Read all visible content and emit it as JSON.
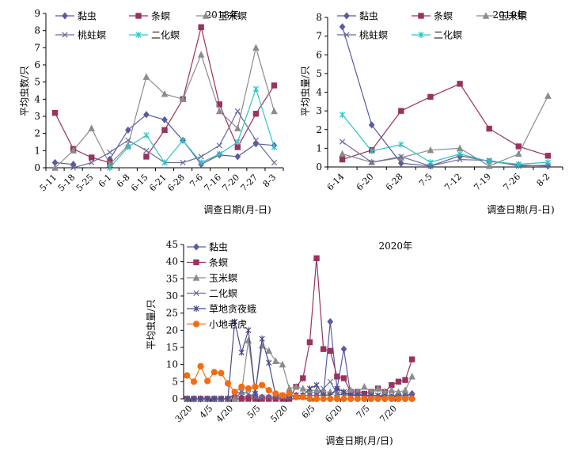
{
  "chart_data": [
    {
      "type": "line",
      "title": "2018年",
      "xlabel": "调查日期(月-日)",
      "ylabel": "平均虫数/只",
      "categories": [
        "5-11",
        "5-18",
        "5-25",
        "6-1",
        "6-8",
        "6-15",
        "6-21",
        "6-28",
        "7-6",
        "7-16",
        "7-20",
        "7-27",
        "8-3"
      ],
      "ylim": [
        0,
        9
      ],
      "yticks": [
        "0",
        "1",
        "2",
        "3",
        "4",
        "5",
        "6",
        "7",
        "8",
        "9"
      ],
      "legend": [
        "黏虫",
        "条螟",
        "玉米螟",
        "桃蛀螟",
        "二化螟"
      ],
      "legend_position": "top",
      "series": [
        {
          "name": "黏虫",
          "color": "#5b5b9f",
          "marker": "diamond",
          "values": [
            0.3,
            0.2,
            null,
            0.5,
            2.2,
            3.1,
            2.8,
            1.6,
            0.2,
            0.75,
            0.65,
            1.4,
            1.3
          ]
        },
        {
          "name": "条螟",
          "color": "#99325f",
          "marker": "square",
          "values": [
            3.2,
            1.1,
            0.6,
            0.3,
            null,
            0.65,
            2.2,
            4.0,
            8.2,
            3.7,
            1.2,
            3.15,
            4.8
          ]
        },
        {
          "name": "玉米螟",
          "color": "#8c8c8c",
          "marker": "triangle",
          "values": [
            0,
            1.0,
            2.3,
            0.2,
            1.3,
            5.3,
            4.3,
            4.0,
            6.6,
            3.3,
            2.3,
            7.0,
            3.3
          ]
        },
        {
          "name": "桃蛀螟",
          "color": "#6b6b9e",
          "marker": "x",
          "values": [
            null,
            0,
            0.3,
            0.9,
            1.6,
            1.0,
            0.3,
            0.3,
            0.65,
            1.3,
            3.3,
            1.6,
            0.3
          ]
        },
        {
          "name": "二化螟",
          "color": "#2ec4c4",
          "marker": "star",
          "values": [
            null,
            null,
            null,
            0,
            1.2,
            1.9,
            0.3,
            1.6,
            0.3,
            0.8,
            1.5,
            4.6,
            1.2
          ]
        }
      ]
    },
    {
      "type": "line",
      "title": "2019年",
      "xlabel": "调查日期(月-日)",
      "ylabel": "平均虫量/只",
      "categories": [
        "6-14",
        "6-20",
        "6-28",
        "7-5",
        "7-12",
        "7-19",
        "7-26",
        "8-2"
      ],
      "ylim": [
        0,
        8
      ],
      "yticks": [
        "0",
        "1",
        "2",
        "3",
        "4",
        "5",
        "6",
        "7",
        "8"
      ],
      "legend": [
        "黏虫",
        "条螟",
        "玉米螟",
        "桃蛀螟",
        "二化螟"
      ],
      "legend_position": "top",
      "series": [
        {
          "name": "黏虫",
          "color": "#5b5b9f",
          "marker": "diamond",
          "values": [
            7.5,
            2.25,
            0.2,
            0.05,
            0.6,
            0.3,
            0.1,
            0.05
          ]
        },
        {
          "name": "条螟",
          "color": "#99325f",
          "marker": "square",
          "values": [
            0.4,
            0.9,
            3.0,
            3.75,
            4.45,
            2.05,
            1.1,
            0.6
          ]
        },
        {
          "name": "玉米螟",
          "color": "#8c8c8c",
          "marker": "triangle",
          "values": [
            0.7,
            0.25,
            0.5,
            0.9,
            1.0,
            0.05,
            0.7,
            3.8
          ]
        },
        {
          "name": "桃蛀螟",
          "color": "#6b6b9e",
          "marker": "x",
          "values": [
            1.35,
            0.25,
            0.55,
            0.05,
            0.4,
            0.35,
            0.05,
            0.1
          ]
        },
        {
          "name": "二化螟",
          "color": "#2ec4c4",
          "marker": "star",
          "values": [
            2.8,
            0.85,
            1.2,
            0.25,
            0.7,
            0.3,
            0.15,
            0.25
          ]
        }
      ]
    },
    {
      "type": "line",
      "title": "2020年",
      "xlabel": "调查日期(月/日)",
      "ylabel": "平均虫量/只",
      "x_tick_labels": [
        "3/20",
        "4/5",
        "4/20",
        "5/5",
        "5/20",
        "6/5",
        "6/20",
        "7/5",
        "7/20"
      ],
      "x_tick_positions": [
        0.5,
        3.5,
        6.5,
        10.5,
        14.5,
        18.5,
        22.5,
        26.5,
        30.5
      ],
      "x_count": 34,
      "ylim": [
        0,
        45
      ],
      "yticks": [
        "0",
        "5",
        "10",
        "15",
        "20",
        "25",
        "30",
        "35",
        "40",
        "45"
      ],
      "legend": [
        "黏虫",
        "条螟",
        "玉米螟",
        "二化螟",
        "草地贪夜蛾",
        "小地老虎"
      ],
      "legend_position": "left",
      "series": [
        {
          "name": "黏虫",
          "color": "#5b5b9f",
          "marker": "diamond",
          "values": [
            0,
            0,
            0,
            0,
            0,
            0,
            0,
            1,
            0.5,
            0.5,
            0.5,
            0.5,
            0.5,
            0.5,
            0.5,
            0.5,
            1,
            1,
            1,
            1,
            1,
            22.5,
            3,
            14.5,
            1,
            1,
            1,
            0.5,
            0.5,
            0.5,
            0.5,
            1,
            1,
            1.5
          ]
        },
        {
          "name": "条螟",
          "color": "#99325f",
          "marker": "square",
          "values": [
            0,
            0,
            0,
            0,
            0,
            0,
            0,
            0,
            0,
            0,
            0,
            0,
            0,
            0,
            0,
            0,
            3.5,
            6,
            16.5,
            41,
            14.5,
            14,
            6.5,
            6,
            2,
            2,
            1.5,
            2,
            3,
            2,
            4,
            5,
            5.5,
            11.5
          ]
        },
        {
          "name": "玉米螟",
          "color": "#8c8c8c",
          "marker": "triangle",
          "values": [
            0,
            0,
            0,
            0,
            0,
            0,
            0,
            0,
            2,
            17,
            2,
            15.5,
            14,
            11,
            10,
            3,
            3.5,
            3,
            2.5,
            2.5,
            2,
            2,
            1.5,
            2,
            2.5,
            2,
            3.5,
            2,
            3,
            2,
            2.5,
            2,
            2.5,
            6.5
          ]
        },
        {
          "name": "二化螟",
          "color": "#6b6b9e",
          "marker": "x",
          "values": [
            0,
            0,
            0,
            0,
            0,
            0,
            0,
            1.5,
            2,
            1.5,
            0.5,
            0.5,
            0.5,
            0.5,
            0.5,
            0.5,
            1,
            1,
            1,
            1,
            3,
            5,
            1.5,
            1,
            1,
            1.5,
            1,
            1,
            1,
            1,
            1,
            1,
            1,
            1
          ]
        },
        {
          "name": "草地贪夜蛾",
          "color": "#4a4a8c",
          "marker": "asterisk",
          "values": [
            0,
            0,
            0,
            0,
            0,
            0,
            0,
            22.5,
            13.5,
            20,
            1.5,
            17.5,
            10.5,
            1,
            1,
            1,
            1,
            1,
            3,
            4,
            1,
            1,
            3,
            2,
            1,
            1,
            1,
            1,
            1,
            0.5,
            0.5,
            0.5,
            0.5,
            0.5
          ]
        },
        {
          "name": "小地老虎",
          "color": "#f26c14",
          "marker": "circle",
          "values": [
            6.8,
            5,
            9.5,
            5.2,
            7.8,
            7.5,
            4.5,
            2,
            3.5,
            3,
            3.5,
            4,
            2.5,
            1.5,
            1,
            1.5,
            0.5,
            0.5,
            0,
            0,
            0,
            0,
            0,
            0,
            0,
            0,
            0,
            0,
            0,
            0,
            0,
            0,
            0,
            0
          ]
        }
      ]
    }
  ]
}
